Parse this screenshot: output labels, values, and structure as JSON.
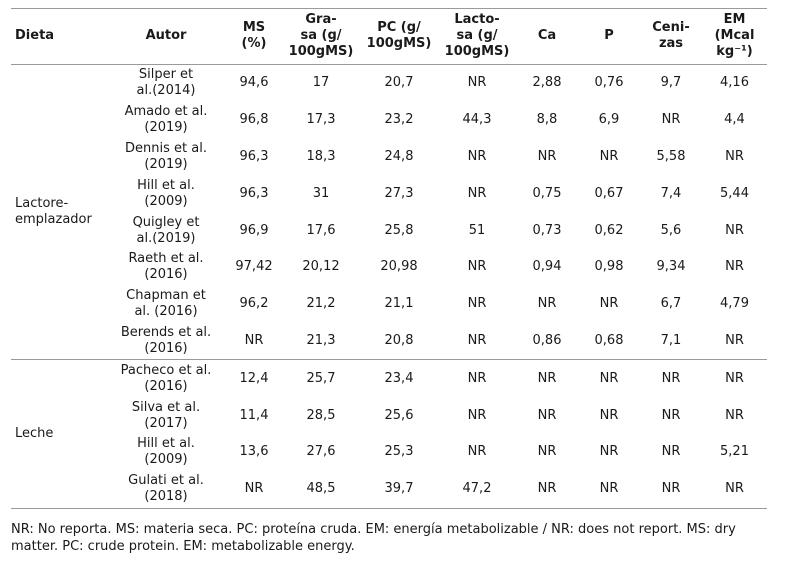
{
  "table": {
    "headers": [
      "Dieta",
      "Autor",
      "MS\n(%)",
      "Gra-\nsa (g/\n100gMS)",
      "PC (g/\n100gMS)",
      "Lacto-\nsa (g/\n100gMS)",
      "Ca",
      "P",
      "Ceni-\nzas",
      "EM\n(Mcal\nkg⁻¹)"
    ],
    "groups": [
      {
        "dieta": "Lactore-\nemplazador",
        "rows": [
          {
            "autor": "Silper et\nal.(2014)",
            "values": [
              "94,6",
              "17",
              "20,7",
              "NR",
              "2,88",
              "0,76",
              "9,7",
              "4,16"
            ]
          },
          {
            "autor": "Amado et al.\n(2019)",
            "values": [
              "96,8",
              "17,3",
              "23,2",
              "44,3",
              "8,8",
              "6,9",
              "NR",
              "4,4"
            ]
          },
          {
            "autor": "Dennis et al.\n(2019)",
            "values": [
              "96,3",
              "18,3",
              "24,8",
              "NR",
              "NR",
              "NR",
              "5,58",
              "NR"
            ]
          },
          {
            "autor": "Hill et al.\n(2009)",
            "values": [
              "96,3",
              "31",
              "27,3",
              "NR",
              "0,75",
              "0,67",
              "7,4",
              "5,44"
            ]
          },
          {
            "autor": "Quigley et\nal.(2019)",
            "values": [
              "96,9",
              "17,6",
              "25,8",
              "51",
              "0,73",
              "0,62",
              "5,6",
              "NR"
            ]
          },
          {
            "autor": "Raeth et al.\n(2016)",
            "values": [
              "97,42",
              "20,12",
              "20,98",
              "NR",
              "0,94",
              "0,98",
              "9,34",
              "NR"
            ]
          },
          {
            "autor": "Chapman et\nal. (2016)",
            "values": [
              "96,2",
              "21,2",
              "21,1",
              "NR",
              "NR",
              "NR",
              "6,7",
              "4,79"
            ]
          },
          {
            "autor": "Berends et al.\n(2016)",
            "values": [
              "NR",
              "21,3",
              "20,8",
              "NR",
              "0,86",
              "0,68",
              "7,1",
              "NR"
            ]
          }
        ]
      },
      {
        "dieta": "Leche",
        "rows": [
          {
            "autor": "Pacheco et al.\n(2016)",
            "values": [
              "12,4",
              "25,7",
              "23,4",
              "NR",
              "NR",
              "NR",
              "NR",
              "NR"
            ]
          },
          {
            "autor": "Silva et al.\n(2017)",
            "values": [
              "11,4",
              "28,5",
              "25,6",
              "NR",
              "NR",
              "NR",
              "NR",
              "NR"
            ]
          },
          {
            "autor": "Hill et al.\n(2009)",
            "values": [
              "13,6",
              "27,6",
              "25,3",
              "NR",
              "NR",
              "NR",
              "NR",
              "5,21"
            ]
          },
          {
            "autor": "Gulati et al.\n(2018)",
            "values": [
              "NR",
              "48,5",
              "39,7",
              "47,2",
              "NR",
              "NR",
              "NR",
              "NR"
            ]
          }
        ]
      }
    ]
  },
  "footnote": "NR: No reporta. MS: materia seca. PC: proteína cruda. EM: energía metabolizable / NR: does not report. MS: dry matter. PC: crude protein. EM: metabolizable energy."
}
